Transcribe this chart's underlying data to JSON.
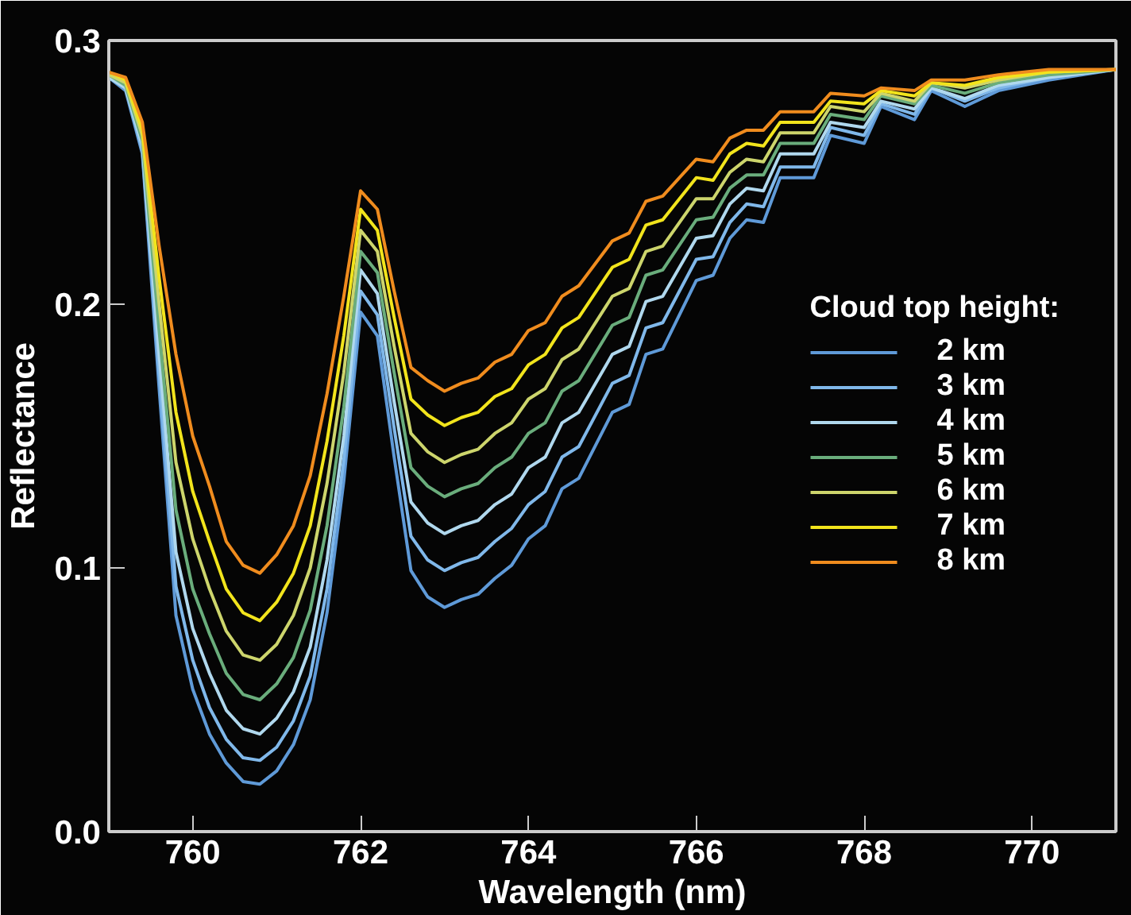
{
  "chart_data": {
    "type": "line",
    "xlabel": "Wavelength (nm)",
    "ylabel": "Reflectance",
    "legend_title": "Cloud top height:",
    "legend": "right",
    "grid": false,
    "marker": "none",
    "line_style": "solid",
    "xlim": [
      759,
      771
    ],
    "xticks": [
      760,
      762,
      764,
      766,
      768,
      770
    ],
    "ylim": [
      0,
      0.3
    ],
    "yticks": [
      {
        "value": 0,
        "label": "0.0"
      },
      {
        "value": 0.1,
        "label": "0.1"
      },
      {
        "value": 0.2,
        "label": "0.2"
      },
      {
        "value": 0.3,
        "label": "0.3"
      }
    ],
    "x": [
      759.0,
      759.2,
      759.4,
      759.6,
      759.8,
      760.0,
      760.2,
      760.4,
      760.6,
      760.8,
      761.0,
      761.2,
      761.4,
      761.6,
      761.8,
      762.0,
      762.2,
      762.4,
      762.6,
      762.8,
      763.0,
      763.2,
      763.4,
      763.6,
      763.8,
      764.0,
      764.2,
      764.4,
      764.6,
      765.0,
      765.2,
      765.4,
      765.6,
      766.0,
      766.2,
      766.4,
      766.6,
      766.8,
      767.0,
      767.4,
      767.6,
      768.0,
      768.2,
      768.6,
      768.8,
      769.2,
      769.6,
      770.2,
      771.0
    ],
    "series": [
      {
        "name": "2 km",
        "color": "#5f9ad8",
        "values": [
          0.286,
          0.281,
          0.257,
          0.168,
          0.082,
          0.054,
          0.037,
          0.026,
          0.019,
          0.018,
          0.023,
          0.033,
          0.05,
          0.083,
          0.133,
          0.197,
          0.188,
          0.142,
          0.099,
          0.089,
          0.085,
          0.088,
          0.09,
          0.096,
          0.101,
          0.111,
          0.116,
          0.13,
          0.134,
          0.159,
          0.162,
          0.181,
          0.183,
          0.209,
          0.211,
          0.225,
          0.232,
          0.231,
          0.248,
          0.248,
          0.264,
          0.261,
          0.275,
          0.27,
          0.281,
          0.275,
          0.281,
          0.285,
          0.289
        ]
      },
      {
        "name": "3 km",
        "color": "#80b8ea",
        "values": [
          0.286,
          0.282,
          0.258,
          0.174,
          0.093,
          0.065,
          0.047,
          0.035,
          0.028,
          0.027,
          0.032,
          0.042,
          0.059,
          0.092,
          0.141,
          0.205,
          0.196,
          0.153,
          0.112,
          0.103,
          0.099,
          0.102,
          0.104,
          0.11,
          0.115,
          0.124,
          0.129,
          0.142,
          0.146,
          0.17,
          0.173,
          0.191,
          0.193,
          0.217,
          0.218,
          0.231,
          0.238,
          0.237,
          0.252,
          0.252,
          0.267,
          0.264,
          0.276,
          0.272,
          0.282,
          0.277,
          0.282,
          0.286,
          0.289
        ]
      },
      {
        "name": "4 km",
        "color": "#b0d8ee",
        "values": [
          0.286,
          0.282,
          0.26,
          0.181,
          0.106,
          0.077,
          0.06,
          0.046,
          0.039,
          0.037,
          0.043,
          0.053,
          0.07,
          0.103,
          0.15,
          0.213,
          0.204,
          0.163,
          0.125,
          0.117,
          0.113,
          0.116,
          0.118,
          0.124,
          0.128,
          0.138,
          0.142,
          0.155,
          0.159,
          0.181,
          0.184,
          0.201,
          0.203,
          0.225,
          0.226,
          0.238,
          0.244,
          0.243,
          0.257,
          0.257,
          0.269,
          0.267,
          0.277,
          0.274,
          0.282,
          0.278,
          0.283,
          0.286,
          0.289
        ]
      },
      {
        "name": "5 km",
        "color": "#6aad7c",
        "values": [
          0.287,
          0.283,
          0.262,
          0.19,
          0.122,
          0.092,
          0.075,
          0.06,
          0.052,
          0.05,
          0.056,
          0.066,
          0.084,
          0.116,
          0.161,
          0.22,
          0.212,
          0.174,
          0.138,
          0.131,
          0.127,
          0.13,
          0.132,
          0.138,
          0.142,
          0.151,
          0.155,
          0.167,
          0.171,
          0.192,
          0.195,
          0.211,
          0.213,
          0.232,
          0.233,
          0.244,
          0.249,
          0.249,
          0.261,
          0.261,
          0.272,
          0.27,
          0.279,
          0.276,
          0.283,
          0.28,
          0.284,
          0.287,
          0.289
        ]
      },
      {
        "name": "6 km",
        "color": "#cdd56c",
        "values": [
          0.287,
          0.284,
          0.264,
          0.2,
          0.14,
          0.111,
          0.092,
          0.076,
          0.067,
          0.065,
          0.071,
          0.082,
          0.1,
          0.132,
          0.174,
          0.228,
          0.22,
          0.184,
          0.151,
          0.144,
          0.14,
          0.143,
          0.145,
          0.151,
          0.155,
          0.164,
          0.168,
          0.179,
          0.183,
          0.203,
          0.206,
          0.22,
          0.222,
          0.24,
          0.24,
          0.25,
          0.255,
          0.254,
          0.265,
          0.265,
          0.275,
          0.273,
          0.28,
          0.277,
          0.284,
          0.282,
          0.285,
          0.288,
          0.289
        ]
      },
      {
        "name": "7 km",
        "color": "#f2e41c",
        "values": [
          0.288,
          0.285,
          0.266,
          0.21,
          0.159,
          0.129,
          0.11,
          0.092,
          0.083,
          0.08,
          0.087,
          0.098,
          0.116,
          0.148,
          0.188,
          0.236,
          0.228,
          0.195,
          0.164,
          0.158,
          0.154,
          0.157,
          0.159,
          0.165,
          0.168,
          0.177,
          0.181,
          0.191,
          0.195,
          0.214,
          0.217,
          0.23,
          0.232,
          0.248,
          0.247,
          0.257,
          0.261,
          0.26,
          0.269,
          0.269,
          0.277,
          0.276,
          0.281,
          0.279,
          0.284,
          0.283,
          0.286,
          0.288,
          0.289
        ]
      },
      {
        "name": "8 km",
        "color": "#f08c1e",
        "values": [
          0.288,
          0.286,
          0.269,
          0.222,
          0.181,
          0.15,
          0.131,
          0.11,
          0.101,
          0.098,
          0.105,
          0.116,
          0.135,
          0.166,
          0.203,
          0.243,
          0.236,
          0.205,
          0.176,
          0.171,
          0.167,
          0.17,
          0.172,
          0.178,
          0.181,
          0.19,
          0.193,
          0.203,
          0.207,
          0.224,
          0.227,
          0.239,
          0.241,
          0.255,
          0.254,
          0.263,
          0.266,
          0.266,
          0.273,
          0.273,
          0.28,
          0.279,
          0.282,
          0.281,
          0.285,
          0.285,
          0.287,
          0.289,
          0.289
        ]
      }
    ]
  }
}
